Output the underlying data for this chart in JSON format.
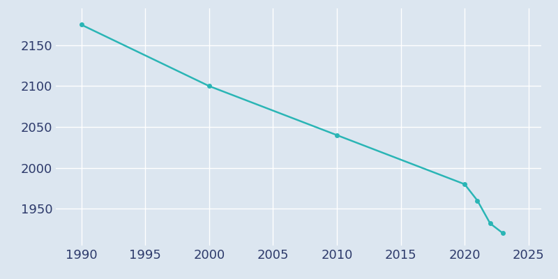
{
  "years": [
    1990,
    2000,
    2010,
    2020,
    2021,
    2022,
    2023
  ],
  "population": [
    2175,
    2100,
    2040,
    1980,
    1960,
    1932,
    1920
  ],
  "line_color": "#2ab5b5",
  "marker": "o",
  "marker_size": 4,
  "bg_color": "#dce6f0",
  "plot_bg_color": "#dce6f0",
  "grid_color": "#ffffff",
  "xlim": [
    1988,
    2026
  ],
  "ylim": [
    1905,
    2195
  ],
  "xticks": [
    1990,
    1995,
    2000,
    2005,
    2010,
    2015,
    2020,
    2025
  ],
  "yticks": [
    1950,
    2000,
    2050,
    2100,
    2150
  ],
  "tick_color": "#2d3a6b",
  "tick_fontsize": 13,
  "line_width": 1.8
}
